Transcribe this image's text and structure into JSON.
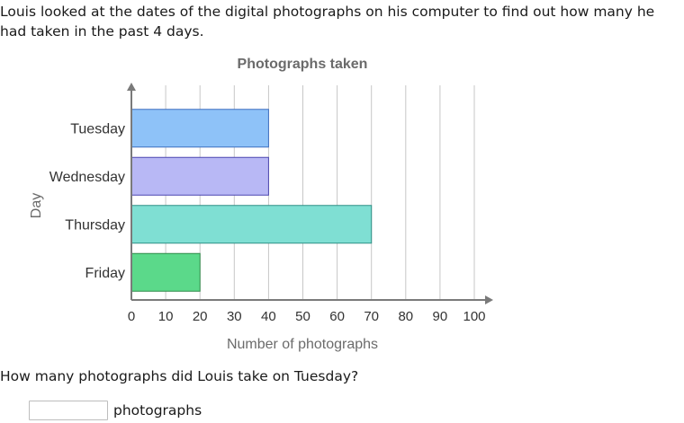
{
  "intro_text": "Louis looked at the dates of the digital photographs on his computer to find out how many he had taken in the past 4 days.",
  "question": "How many photographs did Louis take on Tuesday?",
  "answer": {
    "value": "",
    "unit": "photographs"
  },
  "chart_data": {
    "type": "bar",
    "orientation": "horizontal",
    "title": "Photographs taken",
    "xlabel": "Number of photographs",
    "ylabel": "Day",
    "categories": [
      "Tuesday",
      "Wednesday",
      "Thursday",
      "Friday"
    ],
    "values": [
      40,
      40,
      70,
      20
    ],
    "xlim": [
      0,
      100
    ],
    "xticks": [
      0,
      10,
      20,
      30,
      40,
      50,
      60,
      70,
      80,
      90,
      100
    ],
    "grid": "vertical",
    "bar_colors": [
      {
        "fill": "#8ec2f8",
        "stroke": "#3e6fc0"
      },
      {
        "fill": "#b8b8f5",
        "stroke": "#4a45b0"
      },
      {
        "fill": "#7fdfd3",
        "stroke": "#2f8f85"
      },
      {
        "fill": "#5bd98a",
        "stroke": "#2e8a48"
      }
    ],
    "axis_color": "#7a7a7a",
    "grid_color": "#c7c7c7"
  }
}
